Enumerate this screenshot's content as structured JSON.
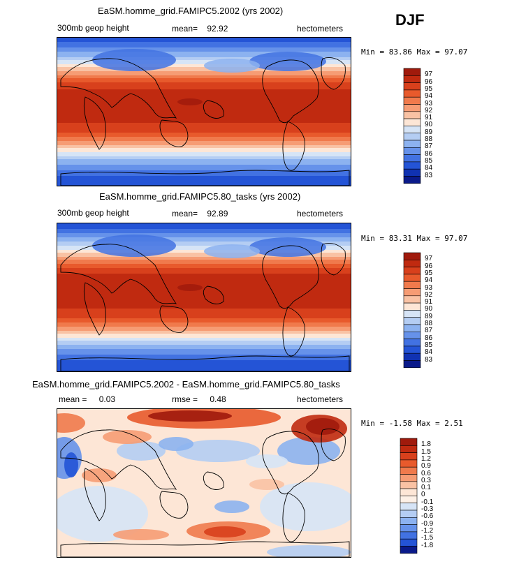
{
  "season": "DJF",
  "chart_data": [
    {
      "type": "heatmap",
      "title": "EaSM.homme_grid.FAMIPC5.2002 (yrs 2002)",
      "variable": "300mb geop height",
      "mean_label": "mean=",
      "mean": "92.92",
      "units": "hectometers",
      "min_label": "Min =",
      "min": "83.86",
      "max_label": "Max =",
      "max": "97.07",
      "levels": [
        "97",
        "96",
        "95",
        "94",
        "93",
        "92",
        "91",
        "90",
        "89",
        "88",
        "87",
        "86",
        "85",
        "84",
        "83"
      ],
      "colors": [
        "#a01a0c",
        "#c02a10",
        "#d8401c",
        "#e85a2c",
        "#f07a4c",
        "#f69c74",
        "#f9c2a4",
        "#fde6d6",
        "#d6e4f6",
        "#b4cdf3",
        "#8cb2f0",
        "#6692ea",
        "#4272e2",
        "#2454d6",
        "#1032b2",
        "#0a1a8a"
      ],
      "profile": [
        84.5,
        86,
        88,
        90.5,
        93,
        95.5,
        96.5,
        96.8,
        96.6,
        96.2,
        95.5,
        93.5,
        91,
        88.5,
        86.5,
        85,
        84.2
      ]
    },
    {
      "type": "heatmap",
      "title": "EaSM.homme_grid.FAMIPC5.80_tasks (yrs 2002)",
      "variable": "300mb geop height",
      "mean_label": "mean=",
      "mean": "92.89",
      "units": "hectometers",
      "min_label": "Min =",
      "min": "83.31",
      "max_label": "Max =",
      "max": "97.07",
      "levels": [
        "97",
        "96",
        "95",
        "94",
        "93",
        "92",
        "91",
        "90",
        "89",
        "88",
        "87",
        "86",
        "85",
        "84",
        "83"
      ],
      "colors": [
        "#a01a0c",
        "#c02a10",
        "#d8401c",
        "#e85a2c",
        "#f07a4c",
        "#f69c74",
        "#f9c2a4",
        "#fde6d6",
        "#d6e4f6",
        "#b4cdf3",
        "#8cb2f0",
        "#6692ea",
        "#4272e2",
        "#2454d6",
        "#1032b2",
        "#0a1a8a"
      ],
      "profile": [
        84,
        86,
        88.2,
        90.6,
        93.2,
        95.6,
        96.6,
        96.9,
        96.7,
        96.2,
        95.5,
        93.6,
        91,
        88.4,
        86.4,
        84.8,
        84
      ]
    },
    {
      "type": "heatmap",
      "title": "EaSM.homme_grid.FAMIPC5.2002 - EaSM.homme_grid.FAMIPC5.80_tasks",
      "mean_label": "mean =",
      "mean": "0.03",
      "rmse_label": "rmse =",
      "rmse": "0.48",
      "units": "hectometers",
      "min_label": "Min =",
      "min": "-1.58",
      "max_label": "Max =",
      "max": "2.51",
      "levels": [
        "1.8",
        "1.5",
        "1.2",
        "0.9",
        "0.6",
        "0.3",
        "0.1",
        "0",
        "-0.1",
        "-0.3",
        "-0.6",
        "-0.9",
        "-1.2",
        "-1.5",
        "-1.8"
      ],
      "colors": [
        "#a01a0c",
        "#c02a10",
        "#d8401c",
        "#e85a2c",
        "#f07a4c",
        "#f69c74",
        "#f9c2a4",
        "#fde6d6",
        "#fdf0e6",
        "#d6e4f6",
        "#b4cdf3",
        "#8cb2f0",
        "#6692ea",
        "#4272e2",
        "#2454d6",
        "#0a1a8a"
      ]
    }
  ]
}
